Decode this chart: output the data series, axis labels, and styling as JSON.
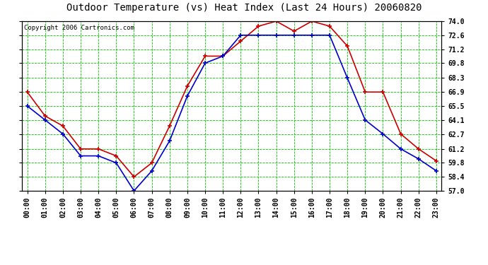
{
  "title": "Outdoor Temperature (vs) Heat Index (Last 24 Hours) 20060820",
  "copyright": "Copyright 2006 Cartronics.com",
  "hours": [
    "00:00",
    "01:00",
    "02:00",
    "03:00",
    "04:00",
    "05:00",
    "06:00",
    "07:00",
    "08:00",
    "09:00",
    "10:00",
    "11:00",
    "12:00",
    "13:00",
    "14:00",
    "15:00",
    "16:00",
    "17:00",
    "18:00",
    "19:00",
    "20:00",
    "21:00",
    "22:00",
    "23:00"
  ],
  "temp_blue": [
    65.5,
    64.1,
    62.7,
    60.5,
    60.5,
    59.8,
    57.0,
    59.0,
    62.0,
    66.5,
    69.8,
    70.5,
    72.6,
    72.6,
    72.6,
    72.6,
    72.6,
    72.6,
    68.3,
    64.1,
    62.7,
    61.2,
    60.2,
    59.0
  ],
  "heat_red": [
    66.9,
    64.5,
    63.5,
    61.2,
    61.2,
    60.5,
    58.4,
    59.8,
    63.5,
    67.5,
    70.5,
    70.5,
    72.0,
    73.5,
    74.0,
    73.0,
    74.0,
    73.5,
    71.5,
    66.9,
    66.9,
    62.7,
    61.2,
    60.0
  ],
  "ylim": [
    57.0,
    74.0
  ],
  "yticks": [
    57.0,
    58.4,
    59.8,
    61.2,
    62.7,
    64.1,
    65.5,
    66.9,
    68.3,
    69.8,
    71.2,
    72.6,
    74.0
  ],
  "bg_color": "#ffffff",
  "plot_bg": "#ffffff",
  "grid_color": "#00cc00",
  "line_blue": "#0000cc",
  "line_red": "#cc0000",
  "title_fontsize": 10,
  "tick_fontsize": 7,
  "copyright_fontsize": 6.5
}
